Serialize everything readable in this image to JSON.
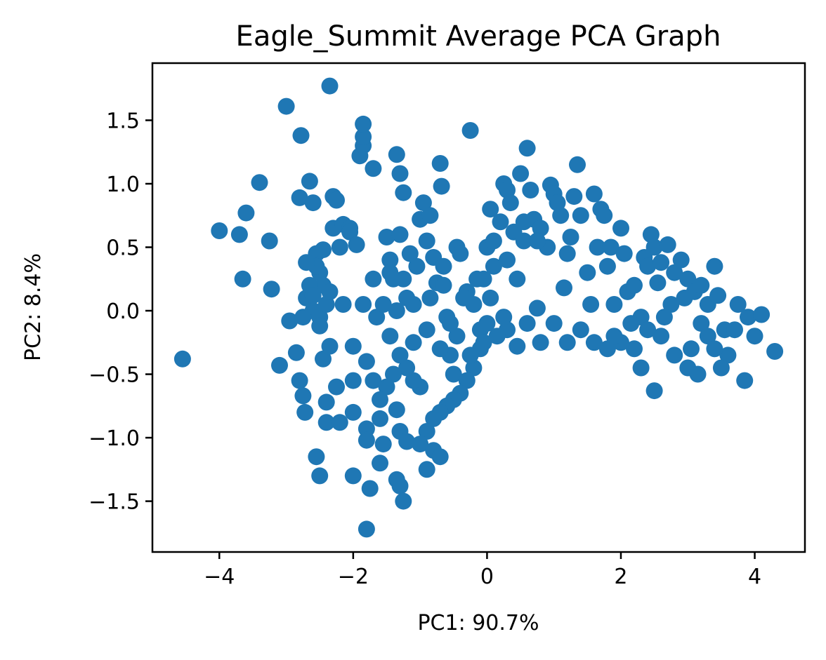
{
  "chart_data": {
    "type": "scatter",
    "title": "Eagle_Summit Average PCA Graph",
    "xlabel": "PC1: 90.7%",
    "ylabel": "PC2: 8.4%",
    "xlim": [
      -5.0,
      4.75
    ],
    "ylim": [
      -1.9,
      1.95
    ],
    "xticks": [
      -4,
      -2,
      0,
      2,
      4
    ],
    "yticks": [
      -1.5,
      -1.0,
      -0.5,
      0.0,
      0.5,
      1.0,
      1.5
    ],
    "xtick_labels": [
      "−4",
      "−2",
      "0",
      "2",
      "4"
    ],
    "ytick_labels": [
      "−1.5",
      "−1.0",
      "−0.5",
      "0.0",
      "0.5",
      "1.0",
      "1.5"
    ],
    "grid": false,
    "legend": "none",
    "series": [
      {
        "color": "#1f77b4",
        "points": [
          [
            -4.55,
            -0.38
          ],
          [
            -4.0,
            0.63
          ],
          [
            -3.7,
            0.6
          ],
          [
            -3.65,
            0.25
          ],
          [
            -3.6,
            0.77
          ],
          [
            -3.4,
            1.01
          ],
          [
            -3.25,
            0.55
          ],
          [
            -3.22,
            0.17
          ],
          [
            -3.1,
            -0.43
          ],
          [
            -3.0,
            1.61
          ],
          [
            -2.95,
            -0.08
          ],
          [
            -2.85,
            -0.33
          ],
          [
            -2.8,
            0.89
          ],
          [
            -2.78,
            1.38
          ],
          [
            -2.8,
            -0.55
          ],
          [
            -2.75,
            -0.67
          ],
          [
            -2.72,
            -0.8
          ],
          [
            -2.65,
            1.02
          ],
          [
            -2.6,
            0.85
          ],
          [
            -2.55,
            0.45
          ],
          [
            -2.5,
            0.3
          ],
          [
            -2.45,
            0.2
          ],
          [
            -2.45,
            -0.38
          ],
          [
            -2.4,
            -0.72
          ],
          [
            -2.4,
            -0.88
          ],
          [
            -2.55,
            -1.15
          ],
          [
            -2.5,
            -1.3
          ],
          [
            -2.35,
            1.77
          ],
          [
            -2.3,
            0.9
          ],
          [
            -2.25,
            0.87
          ],
          [
            -2.3,
            0.65
          ],
          [
            -2.2,
            0.5
          ],
          [
            -2.15,
            0.05
          ],
          [
            -2.35,
            -0.28
          ],
          [
            -2.25,
            -0.6
          ],
          [
            -2.2,
            -0.88
          ],
          [
            -2.15,
            0.68
          ],
          [
            -2.05,
            0.65
          ],
          [
            -2.05,
            0.62
          ],
          [
            -2.0,
            -0.28
          ],
          [
            -2.0,
            -0.55
          ],
          [
            -2.0,
            -0.8
          ],
          [
            -2.0,
            -1.3
          ],
          [
            -1.9,
            1.22
          ],
          [
            -1.85,
            1.3
          ],
          [
            -1.85,
            1.37
          ],
          [
            -1.85,
            1.47
          ],
          [
            -1.95,
            0.52
          ],
          [
            -1.85,
            0.05
          ],
          [
            -1.8,
            -0.4
          ],
          [
            -1.8,
            -0.93
          ],
          [
            -1.8,
            -1.02
          ],
          [
            -1.75,
            -1.4
          ],
          [
            -1.8,
            -1.72
          ],
          [
            -1.7,
            1.12
          ],
          [
            -1.7,
            0.25
          ],
          [
            -1.65,
            -0.05
          ],
          [
            -1.6,
            -0.85
          ],
          [
            -1.55,
            -1.05
          ],
          [
            -1.6,
            -1.2
          ],
          [
            -1.5,
            0.58
          ],
          [
            -1.45,
            0.4
          ],
          [
            -1.4,
            0.25
          ],
          [
            -1.35,
            1.23
          ],
          [
            -1.3,
            1.08
          ],
          [
            -1.25,
            0.93
          ],
          [
            -1.3,
            0.6
          ],
          [
            -1.35,
            -0.78
          ],
          [
            -1.3,
            -0.95
          ],
          [
            -1.2,
            -1.03
          ],
          [
            -1.35,
            -1.33
          ],
          [
            -1.3,
            -1.38
          ],
          [
            -1.25,
            -1.5
          ],
          [
            -1.2,
            0.1
          ],
          [
            -1.15,
            0.45
          ],
          [
            -1.1,
            -0.25
          ],
          [
            -1.0,
            0.72
          ],
          [
            -0.95,
            0.85
          ],
          [
            -0.9,
            0.55
          ],
          [
            -0.85,
            0.75
          ],
          [
            -0.8,
            0.42
          ],
          [
            -0.75,
            0.22
          ],
          [
            -0.7,
            1.16
          ],
          [
            -0.68,
            0.98
          ],
          [
            -0.65,
            0.35
          ],
          [
            -0.6,
            -0.05
          ],
          [
            -0.55,
            -0.35
          ],
          [
            -0.5,
            -0.5
          ],
          [
            -0.45,
            0.5
          ],
          [
            -0.4,
            0.45
          ],
          [
            -0.3,
            0.15
          ],
          [
            -0.25,
            1.42
          ],
          [
            -0.2,
            0.05
          ],
          [
            -0.1,
            -0.15
          ],
          [
            -0.05,
            0.25
          ],
          [
            0.0,
            0.5
          ],
          [
            0.05,
            0.8
          ],
          [
            0.1,
            0.55
          ],
          [
            0.1,
            0.35
          ],
          [
            0.2,
            0.7
          ],
          [
            0.25,
            1.0
          ],
          [
            0.3,
            0.4
          ],
          [
            0.3,
            0.95
          ],
          [
            0.35,
            0.85
          ],
          [
            0.4,
            0.62
          ],
          [
            0.45,
            0.25
          ],
          [
            0.5,
            1.08
          ],
          [
            0.55,
            0.55
          ],
          [
            0.6,
            1.28
          ],
          [
            0.65,
            0.95
          ],
          [
            0.7,
            0.72
          ],
          [
            0.75,
            0.02
          ],
          [
            0.8,
            0.65
          ],
          [
            0.9,
            0.5
          ],
          [
            0.95,
            0.99
          ],
          [
            1.0,
            0.92
          ],
          [
            1.05,
            0.85
          ],
          [
            1.1,
            0.75
          ],
          [
            1.15,
            0.18
          ],
          [
            1.2,
            0.45
          ],
          [
            1.25,
            0.58
          ],
          [
            1.3,
            0.9
          ],
          [
            1.35,
            1.15
          ],
          [
            1.4,
            0.75
          ],
          [
            1.5,
            0.3
          ],
          [
            1.55,
            0.05
          ],
          [
            1.6,
            0.92
          ],
          [
            1.65,
            0.5
          ],
          [
            1.7,
            0.8
          ],
          [
            1.75,
            0.75
          ],
          [
            1.8,
            0.35
          ],
          [
            1.85,
            0.5
          ],
          [
            1.9,
            0.05
          ],
          [
            2.0,
            0.65
          ],
          [
            2.05,
            0.45
          ],
          [
            2.1,
            0.15
          ],
          [
            2.2,
            0.2
          ],
          [
            2.3,
            -0.05
          ],
          [
            2.35,
            0.42
          ],
          [
            2.4,
            0.35
          ],
          [
            2.45,
            0.6
          ],
          [
            2.5,
            0.5
          ],
          [
            2.55,
            0.22
          ],
          [
            2.6,
            0.38
          ],
          [
            2.7,
            0.52
          ],
          [
            2.75,
            0.05
          ],
          [
            2.8,
            0.3
          ],
          [
            2.9,
            0.4
          ],
          [
            3.0,
            0.25
          ],
          [
            3.1,
            0.15
          ],
          [
            3.2,
            -0.1
          ],
          [
            3.3,
            0.05
          ],
          [
            3.4,
            0.35
          ],
          [
            3.45,
            0.12
          ],
          [
            3.55,
            -0.15
          ],
          [
            3.6,
            -0.35
          ],
          [
            3.75,
            0.05
          ],
          [
            3.85,
            -0.55
          ],
          [
            3.9,
            -0.05
          ],
          [
            4.0,
            -0.2
          ],
          [
            4.1,
            -0.03
          ],
          [
            4.3,
            -0.32
          ],
          [
            2.5,
            -0.63
          ],
          [
            2.3,
            -0.45
          ],
          [
            2.6,
            -0.2
          ],
          [
            2.8,
            -0.35
          ],
          [
            3.0,
            -0.45
          ],
          [
            3.15,
            -0.5
          ],
          [
            3.5,
            -0.45
          ],
          [
            3.7,
            -0.15
          ],
          [
            3.05,
            -0.3
          ],
          [
            2.65,
            -0.05
          ],
          [
            2.2,
            -0.3
          ],
          [
            2.0,
            -0.25
          ],
          [
            1.8,
            -0.3
          ],
          [
            1.6,
            -0.25
          ],
          [
            1.4,
            -0.15
          ],
          [
            1.2,
            -0.25
          ],
          [
            1.0,
            -0.1
          ],
          [
            0.8,
            -0.25
          ],
          [
            0.6,
            -0.1
          ],
          [
            0.45,
            -0.28
          ],
          [
            0.3,
            -0.15
          ],
          [
            0.15,
            -0.2
          ],
          [
            0.0,
            -0.1
          ],
          [
            -0.1,
            -0.3
          ],
          [
            -0.2,
            -0.45
          ],
          [
            -0.3,
            -0.55
          ],
          [
            -0.4,
            -0.65
          ],
          [
            -0.5,
            -0.7
          ],
          [
            -0.6,
            -0.75
          ],
          [
            -0.7,
            -0.8
          ],
          [
            -0.8,
            -0.85
          ],
          [
            -0.9,
            -0.95
          ],
          [
            -1.0,
            -1.05
          ],
          [
            -0.8,
            -1.1
          ],
          [
            -0.7,
            -1.15
          ],
          [
            -0.9,
            -1.25
          ],
          [
            -1.0,
            -0.6
          ],
          [
            -1.1,
            -0.55
          ],
          [
            -1.2,
            -0.45
          ],
          [
            -1.3,
            -0.35
          ],
          [
            -1.4,
            -0.5
          ],
          [
            -1.5,
            -0.6
          ],
          [
            -1.6,
            -0.7
          ],
          [
            -1.7,
            -0.55
          ],
          [
            -1.45,
            -0.2
          ],
          [
            -1.35,
            0.0
          ],
          [
            -1.1,
            0.05
          ],
          [
            -0.9,
            -0.15
          ],
          [
            -0.7,
            -0.3
          ],
          [
            -0.55,
            -0.1
          ],
          [
            -0.35,
            0.1
          ],
          [
            -0.15,
            0.25
          ],
          [
            0.05,
            0.1
          ],
          [
            0.25,
            -0.05
          ],
          [
            -2.6,
            0.0
          ],
          [
            -2.7,
            0.1
          ],
          [
            -2.5,
            -0.05
          ],
          [
            -2.4,
            0.05
          ],
          [
            -2.65,
            0.2
          ],
          [
            -2.55,
            0.35
          ],
          [
            -2.7,
            0.38
          ],
          [
            -2.45,
            0.48
          ],
          [
            -2.6,
            0.12
          ],
          [
            -2.75,
            -0.05
          ],
          [
            -2.5,
            -0.12
          ],
          [
            -2.35,
            0.15
          ],
          [
            -1.55,
            0.05
          ],
          [
            -1.45,
            0.3
          ],
          [
            -1.25,
            0.25
          ],
          [
            -1.05,
            0.35
          ],
          [
            -0.85,
            0.1
          ],
          [
            -0.65,
            0.2
          ],
          [
            -0.45,
            -0.2
          ],
          [
            -0.25,
            -0.35
          ],
          [
            -0.05,
            -0.25
          ],
          [
            1.9,
            -0.2
          ],
          [
            2.15,
            -0.1
          ],
          [
            2.4,
            -0.15
          ],
          [
            3.3,
            -0.2
          ],
          [
            3.4,
            -0.3
          ],
          [
            3.2,
            0.2
          ],
          [
            2.95,
            0.1
          ],
          [
            0.55,
            0.7
          ],
          [
            0.75,
            0.55
          ]
        ]
      }
    ]
  }
}
